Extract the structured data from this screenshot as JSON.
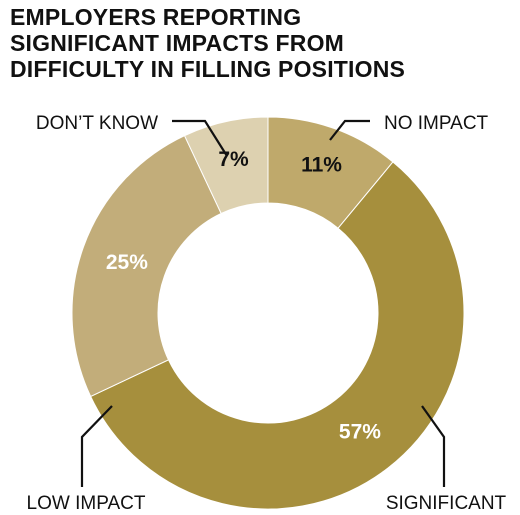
{
  "chart_data": {
    "type": "pie",
    "title_lines": [
      "EMPLOYERS REPORTING",
      "SIGNIFICANT IMPACTS FROM",
      "DIFFICULTY IN FILLING POSITIONS"
    ],
    "slices": [
      {
        "label": "NO IMPACT",
        "value": 11,
        "value_label": "11%",
        "color": "#bfa96b",
        "text_color": "#111111"
      },
      {
        "label": "SIGNIFICANT",
        "value": 57,
        "value_label": "57%",
        "color": "#a68f3d",
        "text_color": "#ffffff"
      },
      {
        "label": "LOW IMPACT",
        "value": 25,
        "value_label": "25%",
        "color": "#c2ad7a",
        "text_color": "#ffffff"
      },
      {
        "label": "DON’T KNOW",
        "value": 7,
        "value_label": "7%",
        "color": "#ddd1b0",
        "text_color": "#111111"
      }
    ],
    "donut": true,
    "start": "12 o'clock",
    "direction": "clockwise",
    "legend": "none"
  }
}
